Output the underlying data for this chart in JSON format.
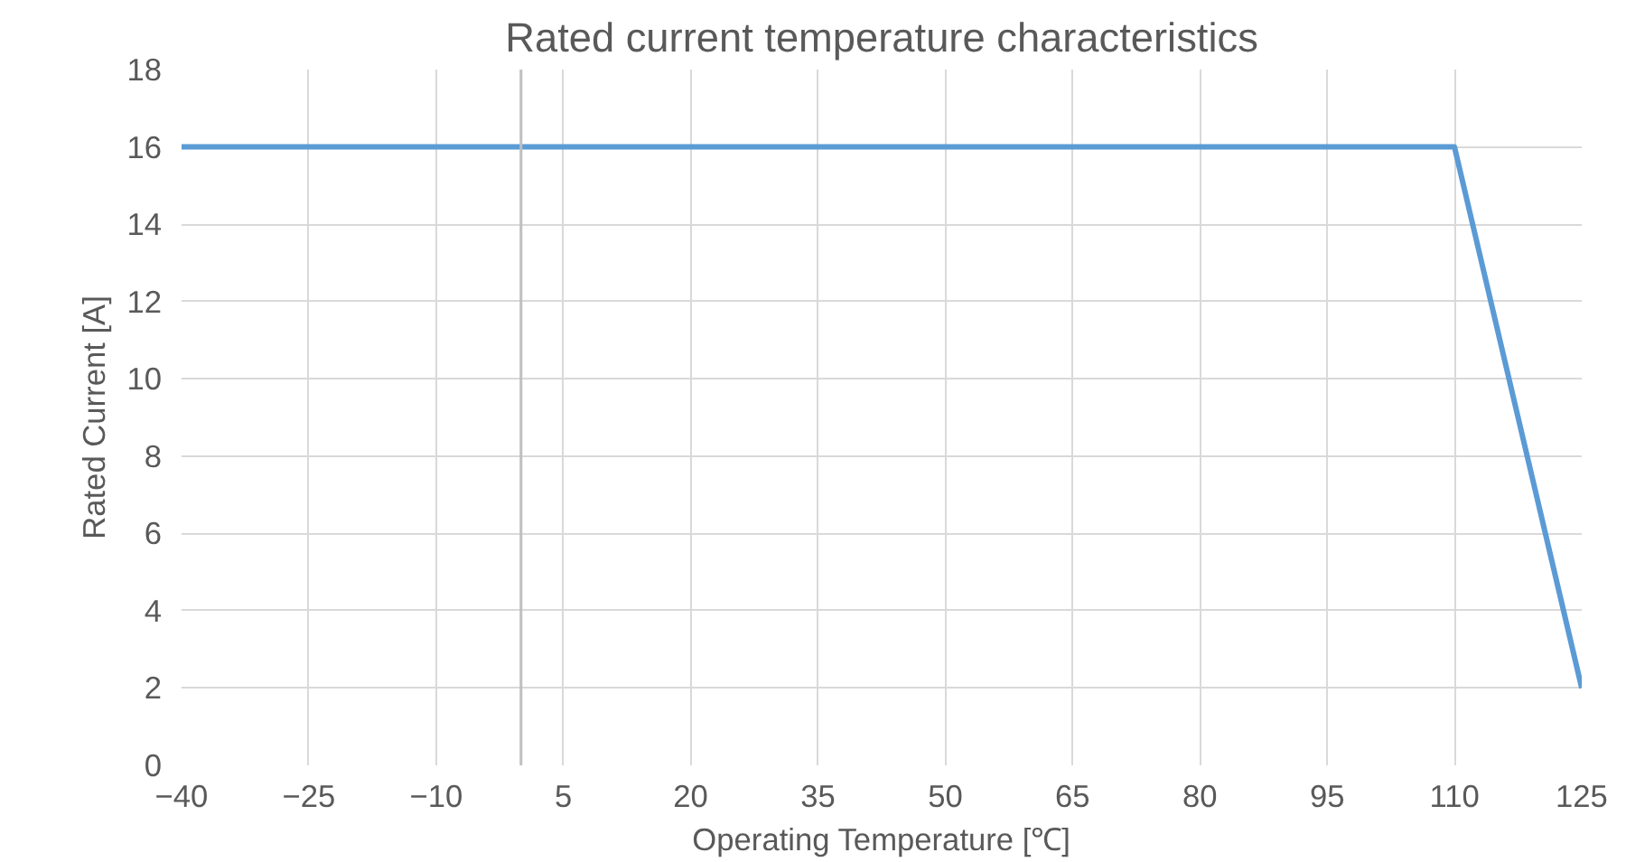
{
  "chart_data": {
    "type": "line",
    "title": "Rated current temperature characteristics",
    "xlabel": "Operating Temperature [℃]",
    "ylabel": "Rated Current [A]",
    "x": [
      -40,
      110,
      125
    ],
    "series": [
      {
        "color": "#5b9bd5",
        "values": [
          16,
          16,
          2
        ]
      }
    ],
    "xlim": [
      -40,
      125
    ],
    "xticks": [
      -40,
      -25,
      -10,
      5,
      20,
      35,
      50,
      65,
      80,
      95,
      110,
      125
    ],
    "ylim": [
      0,
      18
    ],
    "yticks": [
      0,
      2,
      4,
      6,
      8,
      10,
      12,
      14,
      16,
      18
    ],
    "ref_lines": [
      {
        "axis": "x",
        "value": 0,
        "color": "#bfbfbf"
      }
    ],
    "grid": true,
    "marker": "none",
    "line_style": "solid"
  }
}
